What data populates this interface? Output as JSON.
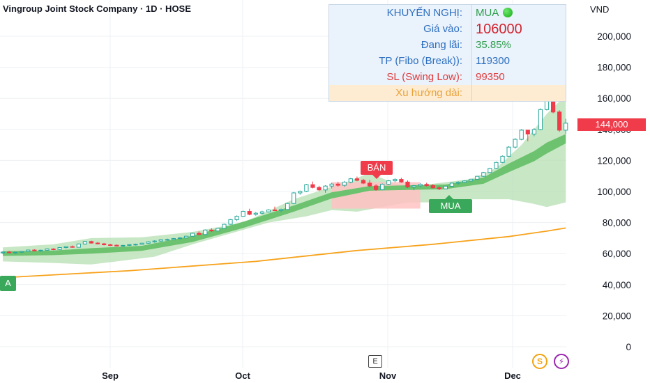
{
  "header": {
    "title": "Vingroup Joint Stock Company · 1D · HOSE",
    "currency": "VND"
  },
  "info_panel": {
    "recommendation_label": "KHUYẾN NGHỊ:",
    "recommendation_value": "MUA",
    "entry_label": "Giá vào:",
    "entry_value": "106000",
    "profit_label": "Đang lãi:",
    "profit_value": "35.85%",
    "tp_label": "TP (Fibo (Break)):",
    "tp_value": "119300",
    "sl_label": "SL (Swing Low):",
    "sl_value": "99350",
    "trend_label": "Xu hướng dài:",
    "trend_value": ""
  },
  "colors": {
    "up": "#26a69a",
    "down": "#ef3b4a",
    "band": "#b4dfb1",
    "band_inner": "#6cc26e",
    "sell_zone": "#ffc2c2",
    "ma200": "#f7a21b",
    "label_blue": "#2c6fbf",
    "label_orange": "#e8a33a",
    "value_green": "#2e9e4a",
    "value_red": "#e03b3b",
    "value_dark_red": "#d1252f"
  },
  "signals": {
    "sell": "BÁN",
    "buy": "MUA",
    "buy_left": "A"
  },
  "events": {
    "earnings": "E",
    "dividend": "S",
    "split": "⚡"
  },
  "chart_data": {
    "type": "candlestick",
    "title": "Vingroup Joint Stock Company · 1D · HOSE",
    "x_tick_labels": [
      "Sep",
      "Oct",
      "Nov",
      "Dec"
    ],
    "y_ticks": [
      0,
      20000,
      40000,
      60000,
      80000,
      100000,
      120000,
      140000,
      160000,
      180000,
      200000
    ],
    "y_tick_labels": [
      "0",
      "20,000",
      "40,000",
      "60,000",
      "80,000",
      "100,000",
      "120,000",
      "140,000",
      "160,000",
      "180,000",
      "200,000"
    ],
    "ylim": [
      -4000,
      222000
    ],
    "last_price_label": "144,000",
    "last_price": 144000,
    "candles": [
      [
        60500,
        61500,
        59800,
        61000
      ],
      [
        61000,
        61800,
        60200,
        60600
      ],
      [
        60600,
        61200,
        59900,
        60900
      ],
      [
        60900,
        61700,
        60300,
        61400
      ],
      [
        61400,
        62600,
        61000,
        62300
      ],
      [
        62300,
        62800,
        61500,
        61800
      ],
      [
        61800,
        62500,
        61200,
        62200
      ],
      [
        62200,
        63400,
        61900,
        63000
      ],
      [
        63000,
        63500,
        62200,
        62700
      ],
      [
        62700,
        64200,
        62400,
        63900
      ],
      [
        63900,
        64800,
        63300,
        64500
      ],
      [
        64500,
        65200,
        63800,
        64100
      ],
      [
        64100,
        66500,
        63900,
        66200
      ],
      [
        66200,
        68200,
        65800,
        67800
      ],
      [
        67800,
        68300,
        66400,
        66800
      ],
      [
        66800,
        67500,
        65900,
        66300
      ],
      [
        66300,
        66900,
        65300,
        65700
      ],
      [
        65700,
        66300,
        64900,
        65400
      ],
      [
        65400,
        65900,
        64600,
        64900
      ],
      [
        64900,
        65600,
        64300,
        65300
      ],
      [
        65300,
        66100,
        64900,
        65800
      ],
      [
        65800,
        66400,
        65200,
        66000
      ],
      [
        66000,
        67000,
        65600,
        66700
      ],
      [
        66700,
        68000,
        66300,
        67600
      ],
      [
        67600,
        68600,
        67000,
        68100
      ],
      [
        68100,
        69300,
        67600,
        68900
      ],
      [
        68900,
        69700,
        68300,
        69100
      ],
      [
        69100,
        70100,
        68700,
        69700
      ],
      [
        69700,
        70600,
        69200,
        70100
      ],
      [
        70100,
        71500,
        69800,
        71200
      ],
      [
        71200,
        73500,
        70900,
        73100
      ],
      [
        73100,
        74300,
        71900,
        72300
      ],
      [
        72300,
        75600,
        72000,
        75200
      ],
      [
        75200,
        76400,
        74000,
        74600
      ],
      [
        74600,
        76700,
        74300,
        76300
      ],
      [
        76300,
        79300,
        76000,
        78900
      ],
      [
        78900,
        82300,
        78600,
        81900
      ],
      [
        81900,
        84600,
        81000,
        84000
      ],
      [
        84000,
        87700,
        83800,
        87200
      ],
      [
        87200,
        88900,
        84700,
        85300
      ],
      [
        85300,
        86800,
        84400,
        86000
      ],
      [
        86000,
        87600,
        85300,
        86900
      ],
      [
        86900,
        88600,
        86500,
        88100
      ],
      [
        88100,
        90300,
        87400,
        87800
      ],
      [
        87800,
        89000,
        86700,
        88400
      ],
      [
        88400,
        92900,
        88100,
        92300
      ],
      [
        92300,
        99700,
        91900,
        99100
      ],
      [
        99100,
        100600,
        98000,
        100100
      ],
      [
        100100,
        104900,
        99600,
        104400
      ],
      [
        104400,
        106400,
        102000,
        102600
      ],
      [
        102600,
        103700,
        100300,
        101000
      ],
      [
        101000,
        104100,
        99200,
        103500
      ],
      [
        103500,
        105600,
        102000,
        104800
      ],
      [
        104800,
        106200,
        103100,
        104000
      ],
      [
        104000,
        106800,
        103000,
        106000
      ],
      [
        106000,
        108700,
        105300,
        108200
      ],
      [
        108200,
        109600,
        106600,
        107200
      ],
      [
        107200,
        108100,
        104800,
        105400
      ],
      [
        105400,
        107400,
        102800,
        103600
      ],
      [
        103600,
        104700,
        100500,
        101200
      ],
      [
        101200,
        105200,
        100800,
        104700
      ],
      [
        104700,
        107300,
        104200,
        106900
      ],
      [
        106900,
        108500,
        105900,
        107800
      ],
      [
        107800,
        108800,
        105600,
        106100
      ],
      [
        106100,
        107100,
        102200,
        102900
      ],
      [
        102900,
        104200,
        100800,
        103700
      ],
      [
        103700,
        105300,
        102900,
        104600
      ],
      [
        104600,
        105600,
        103200,
        103800
      ],
      [
        103800,
        104800,
        101900,
        102400
      ],
      [
        102400,
        103400,
        100900,
        101700
      ],
      [
        101700,
        103800,
        101400,
        103400
      ],
      [
        103400,
        105800,
        103000,
        105400
      ],
      [
        105400,
        106600,
        104400,
        105900
      ],
      [
        105900,
        107200,
        105400,
        106800
      ],
      [
        106800,
        108300,
        106400,
        107900
      ],
      [
        107900,
        110100,
        107500,
        109800
      ],
      [
        109800,
        112600,
        109500,
        112200
      ],
      [
        112200,
        115300,
        111800,
        114900
      ],
      [
        114900,
        119200,
        114500,
        118700
      ],
      [
        118700,
        123200,
        118300,
        122700
      ],
      [
        122700,
        129200,
        122300,
        128600
      ],
      [
        128600,
        134300,
        127600,
        133600
      ],
      [
        133600,
        140200,
        133000,
        139500
      ],
      [
        139500,
        138300,
        132400,
        137000
      ],
      [
        137000,
        140800,
        135600,
        139900
      ],
      [
        139900,
        153500,
        139400,
        152800
      ],
      [
        152800,
        162200,
        152200,
        161500
      ],
      [
        161500,
        162400,
        150400,
        151200
      ],
      [
        151200,
        152300,
        138500,
        139500
      ],
      [
        139500,
        146800,
        137200,
        144000
      ]
    ],
    "upper_band": [
      [
        0,
        64000
      ],
      [
        8,
        66000
      ],
      [
        14,
        70000
      ],
      [
        22,
        70500
      ],
      [
        30,
        74000
      ],
      [
        38,
        80000
      ],
      [
        46,
        95000
      ],
      [
        52,
        103000
      ],
      [
        55,
        107000
      ],
      [
        58,
        112000
      ],
      [
        62,
        105000
      ],
      [
        66,
        104000
      ],
      [
        70,
        106000
      ],
      [
        74,
        108000
      ],
      [
        78,
        115000
      ],
      [
        82,
        130000
      ],
      [
        86,
        150000
      ],
      [
        88,
        158000
      ],
      [
        89,
        160000
      ]
    ],
    "lower_band": [
      [
        0,
        55000
      ],
      [
        8,
        54000
      ],
      [
        14,
        53000
      ],
      [
        18,
        55000
      ],
      [
        24,
        58000
      ],
      [
        30,
        66000
      ],
      [
        36,
        73000
      ],
      [
        42,
        80000
      ],
      [
        48,
        84000
      ],
      [
        52,
        88000
      ],
      [
        56,
        87000
      ],
      [
        60,
        90000
      ],
      [
        64,
        93000
      ],
      [
        70,
        93000
      ],
      [
        74,
        95000
      ],
      [
        80,
        95000
      ],
      [
        84,
        92000
      ],
      [
        86,
        90000
      ],
      [
        89,
        93000
      ]
    ],
    "inner_band_upper": [
      [
        0,
        61500
      ],
      [
        8,
        62000
      ],
      [
        14,
        63500
      ],
      [
        22,
        65000
      ],
      [
        30,
        71500
      ],
      [
        38,
        80500
      ],
      [
        46,
        91000
      ],
      [
        52,
        99500
      ],
      [
        58,
        103500
      ],
      [
        64,
        104000
      ],
      [
        70,
        104500
      ],
      [
        76,
        109000
      ],
      [
        80,
        118000
      ],
      [
        84,
        126000
      ],
      [
        86,
        131500
      ],
      [
        89,
        137000
      ]
    ],
    "inner_band_lower": [
      [
        0,
        58500
      ],
      [
        8,
        59000
      ],
      [
        14,
        60000
      ],
      [
        22,
        61800
      ],
      [
        30,
        67500
      ],
      [
        38,
        76500
      ],
      [
        46,
        87000
      ],
      [
        52,
        95500
      ],
      [
        58,
        100500
      ],
      [
        64,
        101000
      ],
      [
        70,
        101500
      ],
      [
        76,
        105000
      ],
      [
        80,
        112500
      ],
      [
        84,
        119500
      ],
      [
        86,
        124500
      ],
      [
        89,
        131000
      ]
    ],
    "ma200": [
      [
        0,
        44500
      ],
      [
        20,
        49000
      ],
      [
        40,
        55000
      ],
      [
        56,
        62000
      ],
      [
        68,
        66000
      ],
      [
        80,
        71000
      ],
      [
        86,
        74500
      ],
      [
        89,
        76500
      ]
    ],
    "sell_zone": {
      "from": 52,
      "to": 66,
      "top": 106000,
      "bottom": 89000
    }
  }
}
